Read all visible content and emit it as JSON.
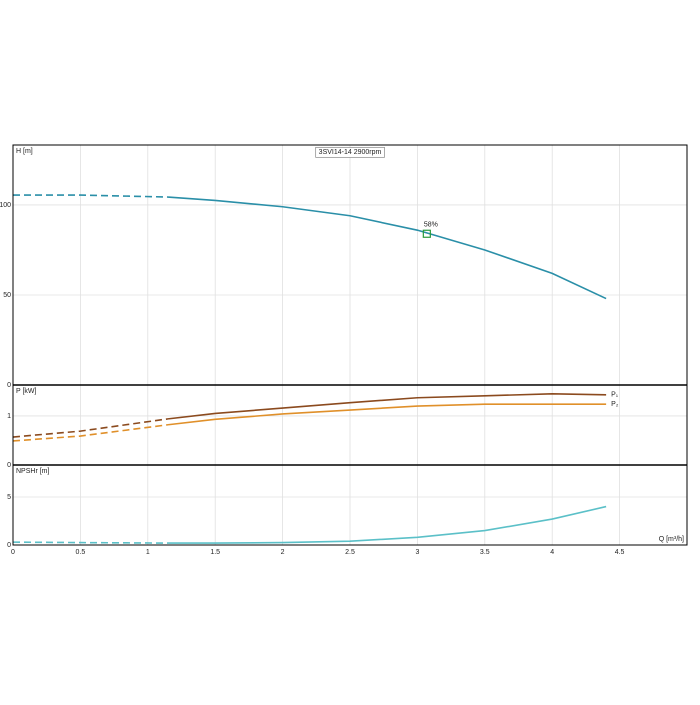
{
  "chart_data": [
    {
      "type": "line",
      "title": "3SVI14-14 2900rpm",
      "y_label": "H [m]",
      "xlim": [
        0,
        5
      ],
      "xticks": [
        0,
        0.5,
        1,
        1.5,
        2,
        2.5,
        3,
        3.5,
        4,
        4.5
      ],
      "ylim": [
        0,
        133.3
      ],
      "yticks": [
        0,
        50,
        100
      ],
      "grid": true,
      "series": [
        {
          "color": "#2a8fa8",
          "style": "dashed",
          "x": [
            0,
            0.5,
            1.15
          ],
          "values": [
            105.5,
            105.5,
            104.4
          ]
        },
        {
          "color": "#2a8fa8",
          "style": "solid",
          "x": [
            1.15,
            1.5,
            2,
            2.5,
            3,
            3.5,
            4,
            4.4
          ],
          "values": [
            104.4,
            102.5,
            99,
            94,
            86,
            75,
            62,
            48
          ]
        }
      ],
      "efficiency_point": {
        "x": 3.07,
        "y": 84,
        "value": 58,
        "value_label": "58%",
        "color": "#2a9a3a"
      }
    },
    {
      "type": "line",
      "y_label": "P [kW]",
      "xlim": [
        0,
        5
      ],
      "xticks": [
        0,
        0.5,
        1,
        1.5,
        2,
        2.5,
        3,
        3.5,
        4,
        4.5
      ],
      "ylim": [
        0,
        1.63
      ],
      "yticks": [
        0,
        1
      ],
      "grid": true,
      "series": [
        {
          "color": "#8b4a1e",
          "style": "dashed",
          "x": [
            0,
            0.5,
            1.15
          ],
          "values": [
            0.57,
            0.69,
            0.94
          ]
        },
        {
          "name": "P₁",
          "color": "#8b4a1e",
          "style": "solid",
          "x": [
            1.15,
            1.5,
            2,
            2.5,
            3,
            3.5,
            4,
            4.4
          ],
          "values": [
            0.94,
            1.05,
            1.16,
            1.27,
            1.37,
            1.41,
            1.45,
            1.43
          ]
        },
        {
          "color": "#e0902a",
          "style": "dashed",
          "x": [
            0,
            0.5,
            1.15
          ],
          "values": [
            0.49,
            0.59,
            0.82
          ]
        },
        {
          "name": "P₂",
          "color": "#e0902a",
          "style": "solid",
          "x": [
            1.15,
            1.5,
            2,
            2.5,
            3,
            3.5,
            4,
            4.4
          ],
          "values": [
            0.82,
            0.93,
            1.04,
            1.12,
            1.2,
            1.24,
            1.24,
            1.24
          ]
        }
      ]
    },
    {
      "type": "line",
      "y_label": "NPSHr [m]",
      "x_label": "Q [m³/h]",
      "xlim": [
        0,
        5
      ],
      "xticks": [
        0,
        0.5,
        1,
        1.5,
        2,
        2.5,
        3,
        3.5,
        4,
        4.5
      ],
      "ylim": [
        0,
        8.33
      ],
      "yticks": [
        0,
        5
      ],
      "grid": true,
      "series": [
        {
          "color": "#5bc0c8",
          "style": "dashed",
          "x": [
            0,
            0.5,
            1.15
          ],
          "values": [
            0.3,
            0.25,
            0.2
          ]
        },
        {
          "color": "#5bc0c8",
          "style": "solid",
          "x": [
            1.15,
            1.5,
            2,
            2.5,
            3,
            3.5,
            4,
            4.4
          ],
          "values": [
            0.2,
            0.2,
            0.25,
            0.4,
            0.8,
            1.5,
            2.7,
            4.0
          ]
        }
      ]
    }
  ]
}
